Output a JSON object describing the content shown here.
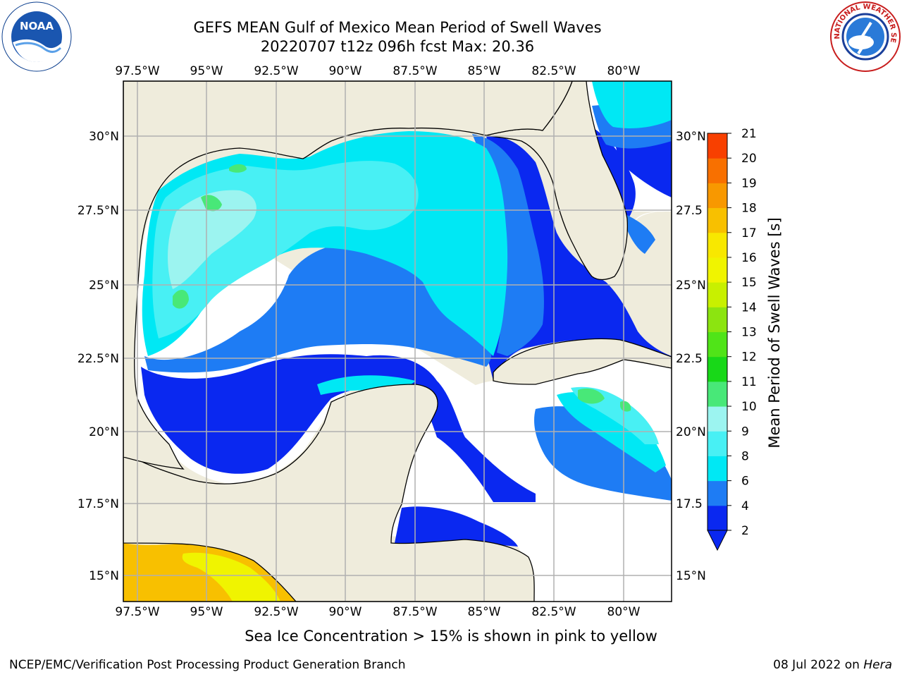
{
  "title": {
    "line1": "GEFS MEAN Gulf of Mexico Mean Period of Swell Waves",
    "line2": "20220707 t12z 096h fcst   Max: 20.36"
  },
  "logos": {
    "left": {
      "icon": "noaa-logo",
      "text": "NOAA"
    },
    "right": {
      "icon": "nws-logo",
      "text": "NATIONAL WEATHER SERVICE"
    }
  },
  "map": {
    "lon_labels": [
      "97.5°W",
      "95°W",
      "92.5°W",
      "90°W",
      "87.5°W",
      "85°W",
      "82.5°W",
      "80°W"
    ],
    "lat_labels_left": [
      "30°N",
      "27.5°N",
      "25°N",
      "22.5°N",
      "20°N",
      "17.5°N",
      "15°N"
    ],
    "lat_labels_right": [
      "30°N",
      "27.5",
      "25°N",
      "22.5",
      "20°N",
      "17.5",
      "15°N"
    ],
    "colors": {
      "land": "#efecdc",
      "ocean_fill": "#ffffff",
      "grid": "#b0b0b0"
    }
  },
  "colorbar": {
    "title": "Mean Period of Swell Waves [s]",
    "ticks": [
      "2",
      "4",
      "6",
      "8",
      "9",
      "10",
      "11",
      "12",
      "13",
      "14",
      "15",
      "16",
      "17",
      "18",
      "19",
      "20",
      "21"
    ],
    "colors": [
      "#0a28f0",
      "#1e7cf4",
      "#00e8f4",
      "#48f0f4",
      "#9cf4f0",
      "#48e878",
      "#18d818",
      "#50e418",
      "#8ce410",
      "#c8f000",
      "#f0f400",
      "#f8e800",
      "#f8c000",
      "#f89800",
      "#f87000",
      "#f84000",
      "#f80000"
    ]
  },
  "note": "Sea Ice Concentration > 15% is shown in pink to yellow",
  "footer": {
    "left": "NCEP/EMC/Verification Post Processing Product Generation Branch",
    "date": "08 Jul 2022 on",
    "host": "Hera"
  }
}
